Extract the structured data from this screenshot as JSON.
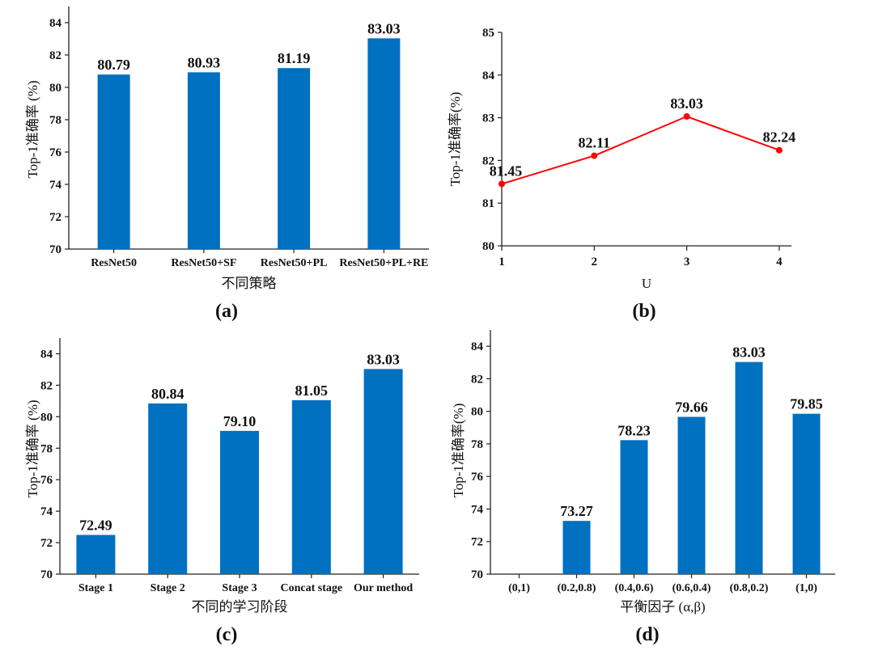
{
  "chart_data": [
    {
      "type": "bar",
      "panel": "(a)",
      "categories": [
        "ResNet50",
        "ResNet50+SF",
        "ResNet50+PL",
        "ResNet50+PL+RE"
      ],
      "values": [
        80.79,
        80.93,
        81.19,
        83.03
      ],
      "value_labels": [
        "80.79",
        "80.93",
        "81.19",
        "83.03"
      ],
      "xlabel": "不同策略",
      "ylabel": "Top-1准确率 (%)",
      "ylim": [
        70,
        85
      ],
      "yticks": [
        70,
        72,
        74,
        76,
        78,
        80,
        82,
        84
      ],
      "color": "#0070c0",
      "grid": false
    },
    {
      "type": "line",
      "panel": "(b)",
      "x": [
        1,
        2,
        3,
        4
      ],
      "values": [
        81.45,
        82.11,
        83.03,
        82.24
      ],
      "value_labels": [
        "81.45",
        "82.11",
        "83.03",
        "82.24"
      ],
      "xlabel": "U",
      "ylabel": "Top-1准确率(%)",
      "ylim": [
        80,
        85
      ],
      "yticks": [
        80,
        81,
        82,
        83,
        84,
        85
      ],
      "xticks": [
        "1",
        "2",
        "3",
        "4"
      ],
      "color": "#ff0000",
      "grid": false
    },
    {
      "type": "bar",
      "panel": "(c)",
      "categories": [
        "Stage 1",
        "Stage 2",
        "Stage 3",
        "Concat stage",
        "Our method"
      ],
      "values": [
        72.49,
        80.84,
        79.1,
        81.05,
        83.03
      ],
      "value_labels": [
        "72.49",
        "80.84",
        "79.10",
        "81.05",
        "83.03"
      ],
      "xlabel": "不同的学习阶段",
      "ylabel": "Top-1准确率 (%)",
      "ylim": [
        70,
        85
      ],
      "yticks": [
        70,
        72,
        74,
        76,
        78,
        80,
        82,
        84
      ],
      "color": "#0070c0",
      "grid": false
    },
    {
      "type": "bar",
      "panel": "(d)",
      "categories": [
        "(0,1)",
        "(0.2,0.8)",
        "(0.4,0.6)",
        "(0.6,0.4)",
        "(0.8,0.2)",
        "(1,0)"
      ],
      "values": [
        null,
        73.27,
        78.23,
        79.66,
        83.03,
        79.85
      ],
      "value_labels": [
        "",
        "73.27",
        "78.23",
        "79.66",
        "83.03",
        "79.85"
      ],
      "xlabel": "平衡因子 (α,β)",
      "ylabel": "Top-1准确率(%)",
      "ylim": [
        70,
        85
      ],
      "yticks": [
        70,
        72,
        74,
        76,
        78,
        80,
        82,
        84
      ],
      "color": "#0070c0",
      "grid": false
    }
  ]
}
